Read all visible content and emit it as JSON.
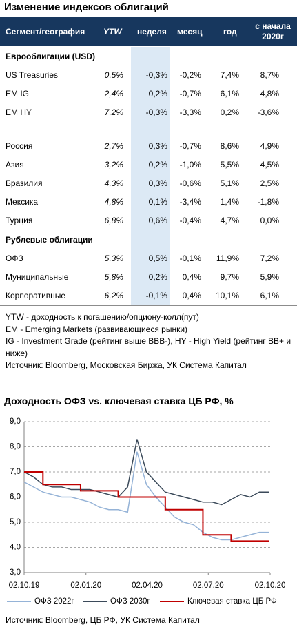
{
  "header": {
    "title": "Изменение индексов облигаций"
  },
  "table": {
    "header": [
      "Сегмент/география",
      "YTW",
      "неделя",
      "месяц",
      "год",
      "с начала 2020г"
    ],
    "groups": [
      {
        "title": "Еврооблигации (USD)",
        "rows": [
          [
            "US Treasuries",
            "0,5%",
            "-0,3%",
            "-0,2%",
            "7,4%",
            "8,7%"
          ],
          [
            "EM IG",
            "2,4%",
            "0,2%",
            "-0,7%",
            "6,1%",
            "4,8%"
          ],
          [
            "EM HY",
            "7,2%",
            "-0,3%",
            "-3,3%",
            "0,2%",
            "-3,6%"
          ]
        ]
      },
      {
        "rows": [
          [
            "Россия",
            "2,7%",
            "0,3%",
            "-0,7%",
            "8,6%",
            "4,9%"
          ],
          [
            "Азия",
            "3,2%",
            "0,2%",
            "-1,0%",
            "5,5%",
            "4,5%"
          ],
          [
            "Бразилия",
            "4,3%",
            "0,3%",
            "-0,6%",
            "5,1%",
            "2,5%"
          ],
          [
            "Мексика",
            "4,8%",
            "0,1%",
            "-3,4%",
            "1,4%",
            "-1,8%"
          ],
          [
            "Турция",
            "6,8%",
            "0,6%",
            "-0,4%",
            "4,7%",
            "0,0%"
          ]
        ]
      },
      {
        "title": "Рублевые облигации",
        "rows": [
          [
            "ОФЗ",
            "5,3%",
            "0,5%",
            "-0,1%",
            "11,9%",
            "7,2%"
          ],
          [
            "Муниципальные",
            "5,8%",
            "0,2%",
            "0,4%",
            "9,7%",
            "5,9%"
          ],
          [
            "Корпоративные",
            "6,2%",
            "-0,1%",
            "0,4%",
            "10,1%",
            "6,1%"
          ]
        ]
      }
    ]
  },
  "notes": [
    "YTW - доходность к погашению/опциону-колл(пут)",
    "EM - Emerging Markets (развивающиеся рынки)",
    "IG - Investment Grade (рейтинг выше BBB-), HY - High Yield (рейтинг BB+ и ниже)",
    "Источник: Bloomberg, Московская Биржа, УК Система Капитал"
  ],
  "chart_data": {
    "type": "line",
    "title": "Доходность ОФЗ vs. ключевая ставка ЦБ РФ, %",
    "x": [
      "02.10.19",
      "16.10.19",
      "30.10.19",
      "13.11.19",
      "27.11.19",
      "11.12.19",
      "25.12.19",
      "08.01.20",
      "22.01.20",
      "05.02.20",
      "19.02.20",
      "04.03.20",
      "18.03.20",
      "01.04.20",
      "15.04.20",
      "29.04.20",
      "13.05.20",
      "27.05.20",
      "10.06.20",
      "24.06.20",
      "08.07.20",
      "22.07.20",
      "05.08.20",
      "19.08.20",
      "02.09.20",
      "16.09.20",
      "30.09.20"
    ],
    "series": [
      {
        "name": "ОФЗ 2022г",
        "color": "#95b3d7",
        "values": [
          6.6,
          6.4,
          6.2,
          6.1,
          6.0,
          6.0,
          5.9,
          5.8,
          5.6,
          5.5,
          5.5,
          5.4,
          7.8,
          6.5,
          6.0,
          5.6,
          5.2,
          5.0,
          4.9,
          4.6,
          4.4,
          4.3,
          4.3,
          4.4,
          4.5,
          4.6,
          4.6
        ]
      },
      {
        "name": "ОФЗ 2030г",
        "color": "#3b4a5a",
        "values": [
          7.0,
          6.8,
          6.5,
          6.4,
          6.4,
          6.3,
          6.3,
          6.3,
          6.2,
          6.1,
          6.0,
          6.4,
          8.3,
          7.0,
          6.6,
          6.2,
          6.1,
          6.0,
          5.9,
          5.8,
          5.8,
          5.7,
          5.9,
          6.1,
          6.0,
          6.2,
          6.2
        ]
      },
      {
        "name": "Ключевая ставка ЦБ РФ",
        "color": "#c00000",
        "step": true,
        "values": [
          7.0,
          7.0,
          6.5,
          6.5,
          6.5,
          6.5,
          6.25,
          6.25,
          6.25,
          6.25,
          6.0,
          6.0,
          6.0,
          6.0,
          6.0,
          5.5,
          5.5,
          5.5,
          5.5,
          4.5,
          4.5,
          4.5,
          4.25,
          4.25,
          4.25,
          4.25,
          4.25
        ]
      }
    ],
    "xlim": [
      "02.10.19",
      "02.10.20"
    ],
    "xticks": [
      "02.10.19",
      "02.01.20",
      "02.04.20",
      "02.07.20",
      "02.10.20"
    ],
    "ylim": [
      3,
      9
    ],
    "yticks": [
      {
        "value": 3,
        "label": "3,0"
      },
      {
        "value": 4,
        "label": "4,0"
      },
      {
        "value": 5,
        "label": "5,0"
      },
      {
        "value": 6,
        "label": "6,0"
      },
      {
        "value": 7,
        "label": "7,0"
      },
      {
        "value": 8,
        "label": "8,0"
      },
      {
        "value": 9,
        "label": "9,0"
      }
    ],
    "grid": true,
    "legend": "bottom",
    "source": "Источник: Bloomberg, ЦБ РФ, УК Система Капитал"
  }
}
